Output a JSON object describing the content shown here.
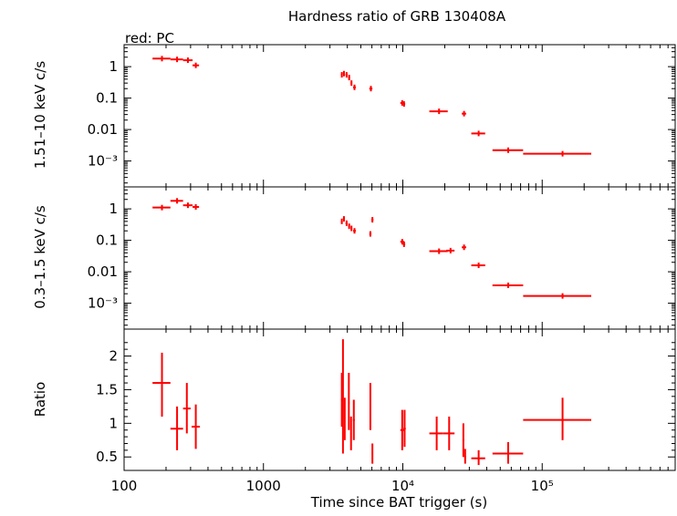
{
  "chart_data": {
    "type": "scatter",
    "title": "Hardness ratio of GRB 130408A",
    "subtitle": "red: PC",
    "xlabel": "Time since BAT trigger (s)",
    "x_scale": "log",
    "xlim": [
      100,
      900000
    ],
    "x_ticks": [
      {
        "value": 100,
        "label": "100"
      },
      {
        "value": 1000,
        "label": "1000"
      },
      {
        "value": 10000,
        "label": "10⁴"
      },
      {
        "value": 100000,
        "label": "10⁵"
      }
    ],
    "series_color": "#ff0000",
    "panels": [
      {
        "ylabel": "1.51–10 keV c/s",
        "y_scale": "log",
        "ylim": [
          0.00015,
          5
        ],
        "y_ticks": [
          {
            "value": 1,
            "label": "1"
          },
          {
            "value": 0.1,
            "label": "0.1"
          },
          {
            "value": 0.01,
            "label": "0.01"
          },
          {
            "value": 0.001,
            "label": "10⁻³"
          }
        ],
        "points": [
          {
            "x": 187,
            "xlo": 160,
            "xhi": 215,
            "y": 1.8
          },
          {
            "x": 240,
            "xlo": 215,
            "xhi": 265,
            "y": 1.7
          },
          {
            "x": 287,
            "xlo": 265,
            "xhi": 310,
            "y": 1.6
          },
          {
            "x": 327,
            "xlo": 310,
            "xhi": 345,
            "y": 1.1
          },
          {
            "x": 3650,
            "xlo": 3600,
            "xhi": 3700,
            "y": 0.55
          },
          {
            "x": 3780,
            "xlo": 3720,
            "xhi": 3840,
            "y": 0.6
          },
          {
            "x": 3950,
            "xlo": 3880,
            "xhi": 4020,
            "y": 0.55
          },
          {
            "x": 4120,
            "xlo": 4060,
            "xhi": 4180,
            "y": 0.45
          },
          {
            "x": 4280,
            "xlo": 4220,
            "xhi": 4340,
            "y": 0.3
          },
          {
            "x": 4500,
            "xlo": 4400,
            "xhi": 4600,
            "y": 0.22
          },
          {
            "x": 5900,
            "xlo": 5750,
            "xhi": 6050,
            "y": 0.2
          },
          {
            "x": 9900,
            "xlo": 9600,
            "xhi": 10200,
            "y": 0.07
          },
          {
            "x": 10200,
            "xlo": 10000,
            "xhi": 10400,
            "y": 0.065
          },
          {
            "x": 18200,
            "xlo": 15500,
            "xhi": 21000,
            "y": 0.038
          },
          {
            "x": 27500,
            "xlo": 26500,
            "xhi": 28500,
            "y": 0.032
          },
          {
            "x": 35000,
            "xlo": 31000,
            "xhi": 39000,
            "y": 0.0075
          },
          {
            "x": 57000,
            "xlo": 44000,
            "xhi": 73000,
            "y": 0.0022
          },
          {
            "x": 140000,
            "xlo": 73000,
            "xhi": 225000,
            "y": 0.0017
          }
        ]
      },
      {
        "ylabel": "0.3–1.5 keV c/s",
        "y_scale": "log",
        "ylim": [
          0.00015,
          5
        ],
        "y_ticks": [
          {
            "value": 1,
            "label": "1"
          },
          {
            "value": 0.1,
            "label": "0.1"
          },
          {
            "value": 0.01,
            "label": "0.01"
          },
          {
            "value": 0.001,
            "label": "10⁻³"
          }
        ],
        "points": [
          {
            "x": 187,
            "xlo": 160,
            "xhi": 215,
            "y": 1.1
          },
          {
            "x": 240,
            "xlo": 215,
            "xhi": 265,
            "y": 1.8
          },
          {
            "x": 287,
            "xlo": 265,
            "xhi": 310,
            "y": 1.3
          },
          {
            "x": 327,
            "xlo": 310,
            "xhi": 345,
            "y": 1.15
          },
          {
            "x": 3650,
            "xlo": 3600,
            "xhi": 3700,
            "y": 0.4
          },
          {
            "x": 3780,
            "xlo": 3720,
            "xhi": 3840,
            "y": 0.48
          },
          {
            "x": 3950,
            "xlo": 3880,
            "xhi": 4020,
            "y": 0.35
          },
          {
            "x": 4120,
            "xlo": 4060,
            "xhi": 4180,
            "y": 0.28
          },
          {
            "x": 4280,
            "xlo": 4220,
            "xhi": 4340,
            "y": 0.24
          },
          {
            "x": 4500,
            "xlo": 4400,
            "xhi": 4600,
            "y": 0.2
          },
          {
            "x": 5850,
            "xlo": 5750,
            "xhi": 5950,
            "y": 0.16
          },
          {
            "x": 6050,
            "xlo": 5950,
            "xhi": 6150,
            "y": 0.45
          },
          {
            "x": 9900,
            "xlo": 9600,
            "xhi": 10200,
            "y": 0.09
          },
          {
            "x": 10200,
            "xlo": 10000,
            "xhi": 10400,
            "y": 0.075
          },
          {
            "x": 18200,
            "xlo": 15500,
            "xhi": 21000,
            "y": 0.045
          },
          {
            "x": 22000,
            "xlo": 20500,
            "xhi": 23500,
            "y": 0.047
          },
          {
            "x": 27500,
            "xlo": 26500,
            "xhi": 28500,
            "y": 0.06
          },
          {
            "x": 35000,
            "xlo": 31000,
            "xhi": 39000,
            "y": 0.016
          },
          {
            "x": 57000,
            "xlo": 44000,
            "xhi": 73000,
            "y": 0.0037
          },
          {
            "x": 140000,
            "xlo": 73000,
            "xhi": 225000,
            "y": 0.0017
          }
        ]
      },
      {
        "ylabel": "Ratio",
        "y_scale": "linear",
        "ylim": [
          0.3,
          2.4
        ],
        "y_ticks": [
          {
            "value": 2,
            "label": "2"
          },
          {
            "value": 1.5,
            "label": "1.5"
          },
          {
            "value": 1,
            "label": "1"
          },
          {
            "value": 0.5,
            "label": "0.5"
          }
        ],
        "points": [
          {
            "x": 187,
            "xlo": 160,
            "xhi": 215,
            "y": 1.6,
            "ylo": 1.1,
            "yhi": 2.05
          },
          {
            "x": 240,
            "xlo": 215,
            "xhi": 265,
            "y": 0.92,
            "ylo": 0.6,
            "yhi": 1.25
          },
          {
            "x": 282,
            "xlo": 265,
            "xhi": 300,
            "y": 1.22,
            "ylo": 0.85,
            "yhi": 1.6
          },
          {
            "x": 327,
            "xlo": 305,
            "xhi": 350,
            "y": 0.95,
            "ylo": 0.62,
            "yhi": 1.28
          },
          {
            "x": 3650,
            "xlo": 3600,
            "xhi": 3700,
            "y": 1.35,
            "ylo": 0.95,
            "yhi": 1.75
          },
          {
            "x": 3720,
            "xlo": 3690,
            "xhi": 3750,
            "y": 1.3,
            "ylo": 0.55,
            "yhi": 2.25
          },
          {
            "x": 3830,
            "xlo": 3800,
            "xhi": 3860,
            "y": 1.05,
            "ylo": 0.75,
            "yhi": 1.38
          },
          {
            "x": 4100,
            "xlo": 4050,
            "xhi": 4150,
            "y": 1.3,
            "ylo": 0.9,
            "yhi": 1.75
          },
          {
            "x": 4250,
            "xlo": 4200,
            "xhi": 4300,
            "y": 0.85,
            "ylo": 0.6,
            "yhi": 1.1
          },
          {
            "x": 4450,
            "xlo": 4380,
            "xhi": 4520,
            "y": 1.05,
            "ylo": 0.75,
            "yhi": 1.35
          },
          {
            "x": 5850,
            "xlo": 5780,
            "xhi": 5920,
            "y": 1.25,
            "ylo": 0.9,
            "yhi": 1.6
          },
          {
            "x": 6050,
            "xlo": 5980,
            "xhi": 6120,
            "y": 0.55,
            "ylo": 0.4,
            "yhi": 0.7
          },
          {
            "x": 9900,
            "xlo": 9600,
            "xhi": 10200,
            "y": 0.9,
            "ylo": 0.6,
            "yhi": 1.2
          },
          {
            "x": 10300,
            "xlo": 10100,
            "xhi": 10500,
            "y": 0.92,
            "ylo": 0.65,
            "yhi": 1.2
          },
          {
            "x": 17500,
            "xlo": 15500,
            "xhi": 19500,
            "y": 0.85,
            "ylo": 0.6,
            "yhi": 1.1
          },
          {
            "x": 21500,
            "xlo": 19500,
            "xhi": 23500,
            "y": 0.85,
            "ylo": 0.6,
            "yhi": 1.1
          },
          {
            "x": 27200,
            "xlo": 26800,
            "xhi": 27600,
            "y": 0.75,
            "ylo": 0.5,
            "yhi": 1.0
          },
          {
            "x": 28000,
            "xlo": 27600,
            "xhi": 28400,
            "y": 0.5,
            "ylo": 0.4,
            "yhi": 0.62
          },
          {
            "x": 35000,
            "xlo": 31000,
            "xhi": 39000,
            "y": 0.48,
            "ylo": 0.38,
            "yhi": 0.6
          },
          {
            "x": 57000,
            "xlo": 44000,
            "xhi": 73000,
            "y": 0.55,
            "ylo": 0.4,
            "yhi": 0.72
          },
          {
            "x": 140000,
            "xlo": 73000,
            "xhi": 225000,
            "y": 1.05,
            "ylo": 0.75,
            "yhi": 1.38
          }
        ]
      }
    ]
  }
}
